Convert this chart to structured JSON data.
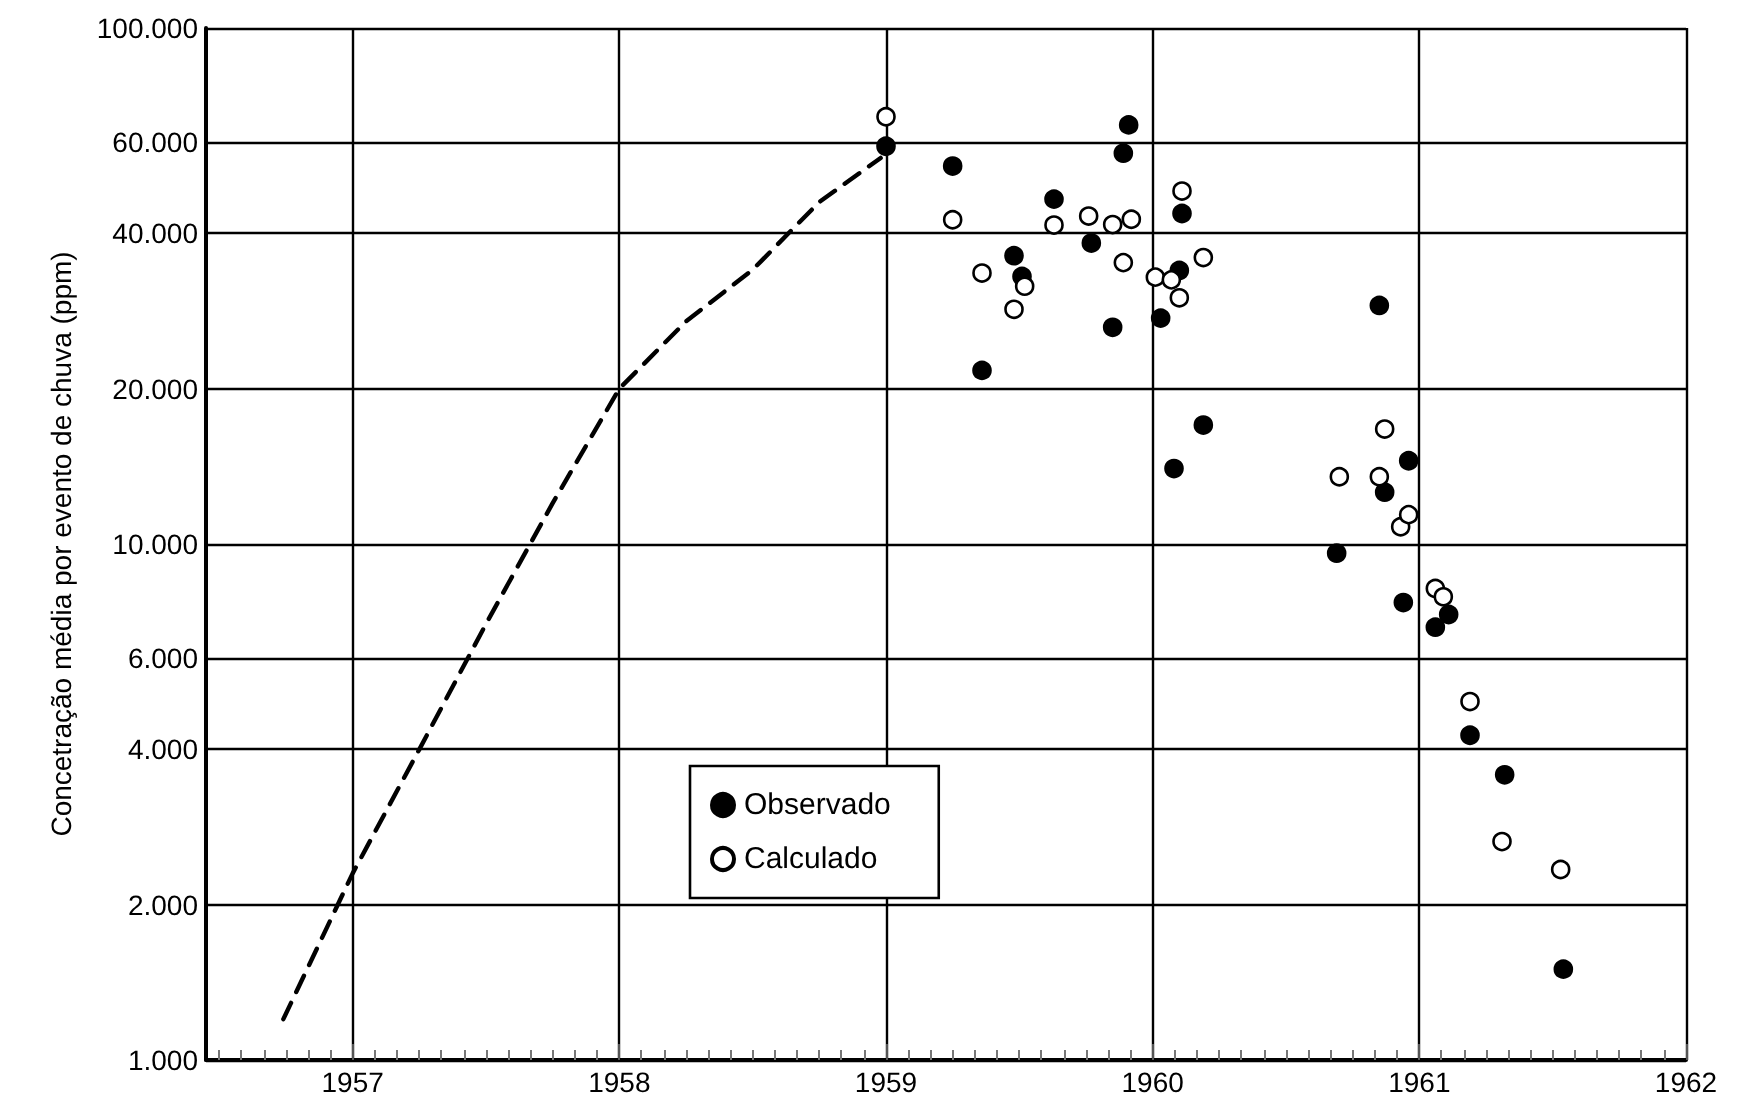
{
  "chart_data": {
    "type": "scatter",
    "ylabel": "Concetração média por evento de chuva (ppm)",
    "log": "y",
    "grid": true,
    "legend": "bottom",
    "marker": "circle",
    "xlim": [
      1956.45,
      1962
    ],
    "xticks": [
      {
        "value": 1956.5,
        "label": null
      },
      {
        "value": 1956.583,
        "label": null
      },
      {
        "value": 1956.667,
        "label": null
      },
      {
        "value": 1956.75,
        "label": null
      },
      {
        "value": 1956.833,
        "label": null
      },
      {
        "value": 1956.917,
        "label": null
      },
      1957,
      {
        "value": 1957.083,
        "label": null
      },
      {
        "value": 1957.167,
        "label": null
      },
      {
        "value": 1957.25,
        "label": null
      },
      {
        "value": 1957.333,
        "label": null
      },
      {
        "value": 1957.417,
        "label": null
      },
      {
        "value": 1957.5,
        "label": null
      },
      {
        "value": 1957.583,
        "label": null
      },
      {
        "value": 1957.667,
        "label": null
      },
      {
        "value": 1957.75,
        "label": null
      },
      {
        "value": 1957.833,
        "label": null
      },
      {
        "value": 1957.917,
        "label": null
      },
      1958,
      {
        "value": 1958.083,
        "label": null
      },
      {
        "value": 1958.167,
        "label": null
      },
      {
        "value": 1958.25,
        "label": null
      },
      {
        "value": 1958.333,
        "label": null
      },
      {
        "value": 1958.417,
        "label": null
      },
      {
        "value": 1958.5,
        "label": null
      },
      {
        "value": 1958.583,
        "label": null
      },
      {
        "value": 1958.667,
        "label": null
      },
      {
        "value": 1958.75,
        "label": null
      },
      {
        "value": 1958.833,
        "label": null
      },
      {
        "value": 1958.917,
        "label": null
      },
      1959,
      {
        "value": 1959.083,
        "label": null
      },
      {
        "value": 1959.167,
        "label": null
      },
      {
        "value": 1959.25,
        "label": null
      },
      {
        "value": 1959.333,
        "label": null
      },
      {
        "value": 1959.417,
        "label": null
      },
      {
        "value": 1959.5,
        "label": null
      },
      {
        "value": 1959.583,
        "label": null
      },
      {
        "value": 1959.667,
        "label": null
      },
      {
        "value": 1959.75,
        "label": null
      },
      {
        "value": 1959.833,
        "label": null
      },
      {
        "value": 1959.917,
        "label": null
      },
      1960,
      {
        "value": 1960.083,
        "label": null
      },
      {
        "value": 1960.167,
        "label": null
      },
      {
        "value": 1960.25,
        "label": null
      },
      {
        "value": 1960.333,
        "label": null
      },
      {
        "value": 1960.417,
        "label": null
      },
      {
        "value": 1960.5,
        "label": null
      },
      {
        "value": 1960.583,
        "label": null
      },
      {
        "value": 1960.667,
        "label": null
      },
      {
        "value": 1960.75,
        "label": null
      },
      {
        "value": 1960.833,
        "label": null
      },
      {
        "value": 1960.917,
        "label": null
      },
      1961,
      {
        "value": 1961.083,
        "label": null
      },
      {
        "value": 1961.167,
        "label": null
      },
      {
        "value": 1961.25,
        "label": null
      },
      {
        "value": 1961.333,
        "label": null
      },
      {
        "value": 1961.417,
        "label": null
      },
      {
        "value": 1961.5,
        "label": null
      },
      {
        "value": 1961.583,
        "label": null
      },
      {
        "value": 1961.667,
        "label": null
      },
      {
        "value": 1961.75,
        "label": null
      },
      {
        "value": 1961.833,
        "label": null
      },
      {
        "value": 1961.917,
        "label": null
      },
      1962
    ],
    "ylim": [
      1000,
      100000
    ],
    "yticks": [
      {
        "value": 1000,
        "label": "1.000"
      },
      {
        "value": 2000,
        "label": "2.000"
      },
      {
        "value": 4000,
        "label": "4.000"
      },
      {
        "value": 6000,
        "label": "6.000"
      },
      {
        "value": 10000,
        "label": "10.000"
      },
      {
        "value": 20000,
        "label": "20.000"
      },
      {
        "value": 40000,
        "label": "40.000"
      },
      {
        "value": 60000,
        "label": "60.000"
      },
      {
        "value": 100000,
        "label": "100.000"
      }
    ],
    "series": [
      {
        "type": "line",
        "color": "#000000",
        "line_style": "dashed",
        "marker": "none",
        "x": [
          1956.74,
          1957,
          1957.25,
          1957.5,
          1957.75,
          1958,
          1958.25,
          1958.5,
          1958.75,
          1958.98
        ],
        "values": [
          1200,
          2300,
          4000,
          7000,
          12000,
          20000,
          27000,
          34000,
          46000,
          56000
        ]
      },
      {
        "name": "Observado",
        "color": "#000000",
        "x": [
          1959.0,
          1959.25,
          1959.36,
          1959.48,
          1959.51,
          1959.63,
          1959.77,
          1959.85,
          1959.89,
          1959.91,
          1960.03,
          1960.08,
          1960.1,
          1960.11,
          1960.19,
          1960.69,
          1960.85,
          1960.87,
          1960.94,
          1960.96,
          1961.06,
          1961.11,
          1961.19,
          1961.32,
          1961.54
        ],
        "values": [
          59000,
          54000,
          21700,
          36200,
          33000,
          46600,
          38300,
          26300,
          57200,
          64900,
          27400,
          14000,
          33900,
          43700,
          17000,
          9600,
          29000,
          12600,
          7700,
          14500,
          6900,
          7300,
          4260,
          3570,
          1500
        ]
      },
      {
        "name": "Calculado",
        "color": "#ffffff",
        "x": [
          1959.0,
          1959.25,
          1959.36,
          1959.48,
          1959.52,
          1959.63,
          1959.76,
          1959.85,
          1959.89,
          1959.92,
          1960.01,
          1960.07,
          1960.1,
          1960.11,
          1960.19,
          1960.7,
          1960.85,
          1960.87,
          1960.93,
          1960.96,
          1961.06,
          1961.09,
          1961.19,
          1961.31,
          1961.53
        ],
        "values": [
          67300,
          42500,
          33500,
          28500,
          31600,
          41500,
          43200,
          41600,
          35100,
          42600,
          32900,
          32500,
          30000,
          48300,
          35900,
          13500,
          13500,
          16700,
          10800,
          11400,
          8200,
          7900,
          4950,
          2650,
          2340
        ]
      }
    ]
  }
}
